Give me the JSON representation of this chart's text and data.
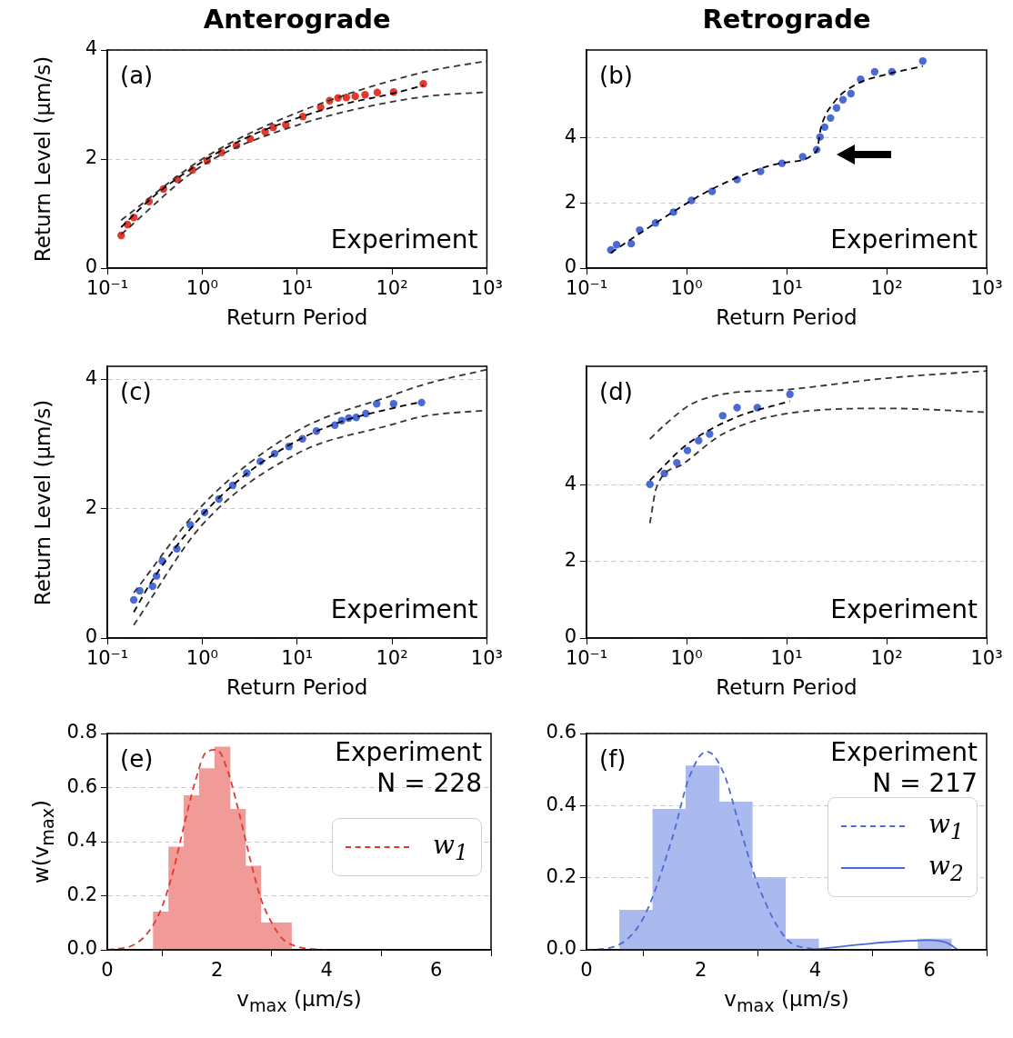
{
  "chart_data": [
    {
      "type": "scatter",
      "title": "Anterograde",
      "xlabel": "Return Period",
      "ylabel": "Return Level (μm/s)",
      "annotations": [
        "(a)",
        "Experiment"
      ],
      "log": "x",
      "grid": "y",
      "xlim": [
        0.1,
        1000
      ],
      "xticks": [
        {
          "value": 0.1,
          "label": "10⁻¹"
        },
        {
          "value": 1,
          "label": "10⁰"
        },
        {
          "value": 10,
          "label": "10¹"
        },
        {
          "value": 100,
          "label": "10²"
        },
        {
          "value": 1000,
          "label": "10³"
        }
      ],
      "ylim": [
        0,
        4
      ],
      "yticks": [
        0,
        2,
        4
      ],
      "series": [
        {
          "type": "scatter",
          "color": "#e3392d",
          "marker": "circle",
          "x": [
            0.14,
            0.163,
            0.19,
            0.275,
            0.39,
            0.55,
            0.79,
            1.13,
            1.6,
            2.3,
            3.2,
            4.6,
            5.6,
            7.6,
            11.5,
            17.7,
            22,
            27,
            33,
            41,
            52,
            70,
            104,
            214
          ],
          "values": [
            0.6,
            0.8,
            0.93,
            1.22,
            1.45,
            1.63,
            1.8,
            1.97,
            2.12,
            2.25,
            2.37,
            2.5,
            2.58,
            2.63,
            2.78,
            2.95,
            3.07,
            3.12,
            3.13,
            3.15,
            3.18,
            3.22,
            3.23,
            3.38
          ]
        },
        {
          "type": "line",
          "color": "#000000",
          "line_style": "dashed",
          "x": [
            0.14,
            0.3,
            1,
            3,
            10,
            30,
            100,
            214
          ],
          "values": [
            0.75,
            1.3,
            1.95,
            2.4,
            2.75,
            3.0,
            3.2,
            3.35
          ]
        },
        {
          "type": "line",
          "color": "#333333",
          "line_style": "dashed",
          "x": [
            0.14,
            1,
            10,
            190,
            1000
          ],
          "values": [
            0.88,
            2.0,
            2.85,
            3.57,
            3.8
          ]
        },
        {
          "type": "line",
          "color": "#333333",
          "line_style": "dashed",
          "x": [
            0.14,
            1,
            10,
            190,
            1000
          ],
          "values": [
            0.62,
            1.88,
            2.62,
            3.13,
            3.23
          ]
        }
      ]
    },
    {
      "type": "scatter",
      "title": "Retrograde",
      "xlabel": "Return Period",
      "annotations": [
        "(b)",
        "Experiment"
      ],
      "log": "x",
      "grid": "y",
      "xlim": [
        0.1,
        1000
      ],
      "xticks": [
        {
          "value": 0.1,
          "label": "10⁻¹"
        },
        {
          "value": 1,
          "label": "10⁰"
        },
        {
          "value": 10,
          "label": "10¹"
        },
        {
          "value": 100,
          "label": "10²"
        },
        {
          "value": 1000,
          "label": "10³"
        }
      ],
      "ylim": [
        0,
        6.7
      ],
      "yticks": [
        0,
        2,
        4
      ],
      "series": [
        {
          "type": "scatter",
          "color": "#4a6bd6",
          "marker": "circle",
          "x": [
            0.175,
            0.2,
            0.28,
            0.34,
            0.49,
            0.74,
            1.12,
            1.8,
            3.2,
            5.5,
            9,
            14.5,
            20,
            21.6,
            24,
            27.5,
            31.6,
            36.6,
            44,
            55,
            76,
            113,
            230
          ],
          "values": [
            0.56,
            0.72,
            0.75,
            1.17,
            1.39,
            1.72,
            2.08,
            2.36,
            2.72,
            2.97,
            3.22,
            3.42,
            3.64,
            4.03,
            4.33,
            4.61,
            4.92,
            5.17,
            5.36,
            5.8,
            6.03,
            6.03,
            6.36
          ]
        },
        {
          "type": "line",
          "color": "#000000",
          "line_style": "dashed",
          "x": [
            0.175,
            0.5,
            2,
            10,
            20,
            22,
            30,
            50,
            100,
            230
          ],
          "values": [
            0.47,
            1.4,
            2.5,
            3.25,
            3.6,
            4.3,
            5.1,
            5.65,
            5.95,
            6.2
          ]
        }
      ]
    },
    {
      "type": "scatter",
      "xlabel": "Return Period",
      "ylabel": "Return Level (μm/s)",
      "annotations": [
        "(c)",
        "Experiment"
      ],
      "log": "x",
      "grid": "y",
      "xlim": [
        0.1,
        1000
      ],
      "xticks": [
        {
          "value": 0.1,
          "label": "10⁻¹"
        },
        {
          "value": 1,
          "label": "10⁰"
        },
        {
          "value": 10,
          "label": "10¹"
        },
        {
          "value": 100,
          "label": "10²"
        },
        {
          "value": 1000,
          "label": "10³"
        }
      ],
      "ylim": [
        0,
        4.2
      ],
      "yticks": [
        0,
        2,
        4
      ],
      "series": [
        {
          "type": "scatter",
          "color": "#4a6bd6",
          "marker": "circle",
          "x": [
            0.19,
            0.22,
            0.3,
            0.33,
            0.38,
            0.54,
            0.75,
            1.06,
            1.5,
            2.1,
            2.95,
            4.1,
            5.8,
            8.2,
            11.4,
            16,
            25,
            29.5,
            35,
            42,
            53,
            69,
            104,
            205
          ],
          "values": [
            0.59,
            0.73,
            0.8,
            0.96,
            1.19,
            1.38,
            1.75,
            1.94,
            2.15,
            2.36,
            2.55,
            2.73,
            2.85,
            2.96,
            3.08,
            3.2,
            3.29,
            3.36,
            3.4,
            3.41,
            3.47,
            3.62,
            3.62,
            3.64
          ]
        },
        {
          "type": "line",
          "color": "#000000",
          "line_style": "dashed",
          "x": [
            0.19,
            0.3,
            1,
            3,
            10,
            30,
            100,
            205
          ],
          "values": [
            0.4,
            0.9,
            1.9,
            2.55,
            3.05,
            3.35,
            3.55,
            3.65
          ]
        },
        {
          "type": "line",
          "color": "#333333",
          "line_style": "dashed",
          "x": [
            0.19,
            1,
            10,
            100,
            218,
            1000
          ],
          "values": [
            0.7,
            2.05,
            3.2,
            3.75,
            3.92,
            4.15
          ]
        },
        {
          "type": "line",
          "color": "#333333",
          "line_style": "dashed",
          "x": [
            0.19,
            1,
            10,
            100,
            218,
            1000
          ],
          "values": [
            0.2,
            1.75,
            2.85,
            3.3,
            3.43,
            3.52
          ]
        }
      ]
    },
    {
      "type": "scatter",
      "xlabel": "Return Period",
      "annotations": [
        "(d)",
        "Experiment"
      ],
      "log": "x",
      "grid": "y",
      "xlim": [
        0.1,
        1000
      ],
      "xticks": [
        {
          "value": 0.1,
          "label": "10⁻¹"
        },
        {
          "value": 1,
          "label": "10⁰"
        },
        {
          "value": 10,
          "label": "10¹"
        },
        {
          "value": 100,
          "label": "10²"
        },
        {
          "value": 1000,
          "label": "10³"
        }
      ],
      "ylim": [
        0,
        7.1
      ],
      "yticks": [
        0,
        2,
        4
      ],
      "series": [
        {
          "type": "scatter",
          "color": "#4a6bd6",
          "marker": "circle",
          "x": [
            0.43,
            0.6,
            0.8,
            1.02,
            1.32,
            1.7,
            2.3,
            3.2,
            5.1,
            10.8
          ],
          "values": [
            4.02,
            4.3,
            4.58,
            4.9,
            5.16,
            5.33,
            5.81,
            6.02,
            6.02,
            6.37
          ]
        },
        {
          "type": "line",
          "color": "#000000",
          "line_style": "dashed",
          "x": [
            0.43,
            1,
            3,
            10.8
          ],
          "values": [
            4.12,
            5.05,
            5.75,
            6.19
          ]
        },
        {
          "type": "line",
          "color": "#333333",
          "line_style": "dashed",
          "x": [
            0.43,
            0.6,
            1.1,
            2.3,
            10,
            100,
            1000
          ],
          "values": [
            5.2,
            5.56,
            6.1,
            6.37,
            6.49,
            6.79,
            6.98
          ]
        },
        {
          "type": "line",
          "color": "#333333",
          "line_style": "dashed",
          "x": [
            0.43,
            0.5,
            0.9,
            2.3,
            11,
            100,
            1000
          ],
          "values": [
            3.0,
            3.93,
            4.53,
            5.33,
            5.88,
            6.0,
            5.9
          ]
        }
      ]
    },
    {
      "type": "histogram",
      "xlabel": "v$_{max}$ (μm/s)",
      "ylabel": "w(v$_{max}$)",
      "annotations": [
        "(e)",
        "Experiment",
        "N = 228"
      ],
      "legend": "right",
      "grid": "y",
      "xlim": [
        0,
        7
      ],
      "xticks": [
        0,
        2,
        4,
        6
      ],
      "ylim": [
        0,
        0.8
      ],
      "yticks": [
        {
          "value": 0,
          "label": "0.0"
        },
        0.2,
        0.4,
        0.6,
        0.8
      ],
      "series": [
        {
          "type": "histogram",
          "color": "#f09b97",
          "bins": [
            0.84,
            1.12,
            1.4,
            1.68,
            1.96,
            2.24,
            2.52,
            2.8,
            3.08,
            3.36
          ],
          "values": [
            0.14,
            0.38,
            0.57,
            0.67,
            0.75,
            0.52,
            0.31,
            0.1,
            0.1
          ]
        },
        {
          "type": "line",
          "name": "w$_{1}$",
          "color": "#e3392d",
          "line_style": "dashed",
          "x": [
            0,
            0.5,
            0.8,
            1.0,
            1.2,
            1.4,
            1.6,
            1.8,
            2.0,
            2.2,
            2.4,
            2.6,
            2.8,
            3.0,
            3.2,
            3.5,
            4.0
          ],
          "values": [
            0,
            0.02,
            0.08,
            0.16,
            0.29,
            0.46,
            0.62,
            0.73,
            0.74,
            0.66,
            0.51,
            0.34,
            0.19,
            0.1,
            0.04,
            0.01,
            0
          ]
        }
      ]
    },
    {
      "type": "histogram",
      "xlabel": "v$_{max}$ (μm/s)",
      "annotations": [
        "(f)",
        "Experiment",
        "N = 217"
      ],
      "legend": "right",
      "grid": "y",
      "xlim": [
        0,
        7
      ],
      "xticks": [
        0,
        2,
        4,
        6
      ],
      "ylim": [
        0,
        0.6
      ],
      "yticks": [
        {
          "value": 0,
          "label": "0.0"
        },
        0.2,
        0.4,
        0.6
      ],
      "series": [
        {
          "type": "histogram",
          "color": "#aab9ee",
          "bins": [
            0.58,
            1.16,
            1.74,
            2.32,
            2.9,
            3.48,
            4.06,
            4.64,
            5.22,
            5.8,
            6.38
          ],
          "values": [
            0.11,
            0.39,
            0.51,
            0.41,
            0.2,
            0.03,
            0,
            0,
            0,
            0.03
          ]
        },
        {
          "type": "line",
          "name": "w$_{1}$",
          "color": "#4a6bd6",
          "line_style": "dashed",
          "x": [
            0,
            0.5,
            1.0,
            1.5,
            1.8,
            2.1,
            2.4,
            2.7,
            3.0,
            3.5,
            4.0
          ],
          "values": [
            0,
            0.01,
            0.09,
            0.31,
            0.48,
            0.55,
            0.49,
            0.33,
            0.18,
            0.03,
            0
          ]
        },
        {
          "type": "line",
          "name": "w$_{2}$",
          "color": "#4a6bd6",
          "line_style": "solid",
          "x": [
            3.9,
            4.5,
            5.0,
            5.5,
            6.0,
            6.3,
            6.5
          ],
          "values": [
            0,
            0.01,
            0.018,
            0.024,
            0.027,
            0.02,
            0
          ]
        }
      ]
    }
  ]
}
